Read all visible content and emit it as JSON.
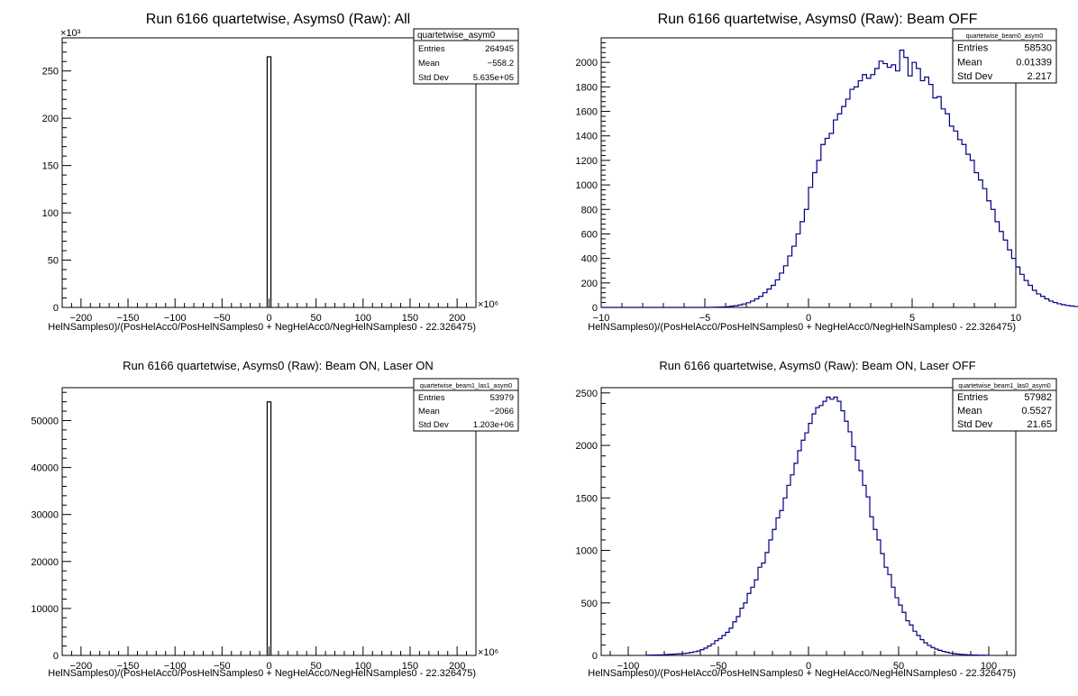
{
  "chart_data": [
    {
      "type": "bar",
      "title": "Run 6166 quartetwise, Asyms0 (Raw): All",
      "xlabel": "HelNSamples0)/(PosHelAcc0/PosHelNSamples0 + NegHelAcc0/NegHelNSamples0 - 22.326475)",
      "ylabel": "",
      "x_multiplier": "×10⁶",
      "y_multiplier": "×10³",
      "xlim": [
        -220,
        220
      ],
      "ylim": [
        0,
        285
      ],
      "xticks": [
        -200,
        -150,
        -100,
        -50,
        0,
        50,
        100,
        150,
        200
      ],
      "yticks": [
        0,
        50,
        100,
        150,
        200,
        250
      ],
      "bins": [
        [
          -2,
          2,
          265
        ]
      ],
      "color": "#000000",
      "stats": {
        "name": "quartetwise_asym0",
        "rows": [
          [
            "Entries",
            "264945"
          ],
          [
            "Mean",
            "−558.2"
          ],
          [
            "Std Dev",
            "5.635e+05"
          ]
        ]
      }
    },
    {
      "type": "bar",
      "title": "Run 6166 quartetwise, Asyms0 (Raw): Beam OFF",
      "xlabel": "HelNSamples0)/(PosHelAcc0/PosHelNSamples0 + NegHelAcc0/NegHelNSamples0 - 22.326475)",
      "ylabel": "",
      "xlim": [
        -10,
        10
      ],
      "ylim": [
        0,
        2200
      ],
      "xticks": [
        -10,
        -5,
        0,
        5,
        10
      ],
      "yticks": [
        0,
        200,
        400,
        600,
        800,
        1000,
        1200,
        1400,
        1600,
        1800,
        2000
      ],
      "bin_start": -10,
      "bin_width": 0.2,
      "values": [
        0,
        0,
        0,
        0,
        0,
        0,
        0,
        0,
        0,
        0,
        0,
        0,
        0,
        0,
        0,
        0,
        0,
        0,
        0,
        0,
        0,
        0,
        0,
        0,
        0,
        0,
        1,
        2,
        3,
        4,
        6,
        10,
        14,
        20,
        28,
        38,
        52,
        70,
        90,
        120,
        150,
        180,
        225,
        280,
        340,
        420,
        500,
        600,
        700,
        800,
        980,
        1100,
        1200,
        1330,
        1380,
        1420,
        1530,
        1580,
        1640,
        1700,
        1780,
        1800,
        1850,
        1900,
        1870,
        1900,
        1950,
        2010,
        1990,
        1960,
        1980,
        1930,
        2100,
        2040,
        1890,
        2000,
        1950,
        1850,
        1880,
        1820,
        1710,
        1720,
        1620,
        1580,
        1480,
        1440,
        1370,
        1330,
        1250,
        1200,
        1100,
        1040,
        970,
        870,
        800,
        700,
        620,
        550,
        470,
        400,
        330,
        270,
        220,
        180,
        140,
        110,
        90,
        70,
        52,
        40,
        30,
        22,
        16,
        12,
        8,
        6,
        4,
        3,
        2,
        1,
        0,
        0,
        0,
        0
      ],
      "color": "#000080",
      "stats": {
        "name": "quartetwise_beam0_asym0",
        "rows": [
          [
            "Entries",
            "58530"
          ],
          [
            "Mean",
            "0.01339"
          ],
          [
            "Std Dev",
            "2.217"
          ]
        ]
      }
    },
    {
      "type": "bar",
      "title": "Run 6166 quartetwise, Asyms0 (Raw): Beam ON, Laser ON",
      "xlabel": "HelNSamples0)/(PosHelAcc0/PosHelNSamples0 + NegHelAcc0/NegHelNSamples0 - 22.326475)",
      "ylabel": "",
      "x_multiplier": "×10⁶",
      "xlim": [
        -220,
        220
      ],
      "ylim": [
        0,
        57000
      ],
      "xticks": [
        -200,
        -150,
        -100,
        -50,
        0,
        50,
        100,
        150,
        200
      ],
      "yticks": [
        0,
        10000,
        20000,
        30000,
        40000,
        50000
      ],
      "bins": [
        [
          -2,
          2,
          53979
        ]
      ],
      "color": "#000000",
      "stats": {
        "name": "quartetwise_beam1_las1_asym0",
        "rows": [
          [
            "Entries",
            "53979"
          ],
          [
            "Mean",
            "−2066"
          ],
          [
            "Std Dev",
            "1.203e+06"
          ]
        ]
      }
    },
    {
      "type": "bar",
      "title": "Run 6166 quartetwise, Asyms0 (Raw): Beam ON, Laser OFF",
      "xlabel": "HelNSamples0)/(PosHelAcc0/PosHelNSamples0 + NegHelAcc0/NegHelNSamples0 - 22.326475)",
      "ylabel": "",
      "xlim": [
        -115,
        115
      ],
      "ylim": [
        0,
        2550
      ],
      "xticks": [
        -100,
        -50,
        0,
        50,
        100
      ],
      "yticks": [
        0,
        500,
        1000,
        1500,
        2000,
        2500
      ],
      "bin_start": -90,
      "bin_width": 2,
      "values": [
        2,
        3,
        4,
        5,
        6,
        8,
        10,
        12,
        14,
        16,
        18,
        22,
        28,
        35,
        42,
        55,
        70,
        90,
        110,
        140,
        160,
        190,
        220,
        260,
        320,
        370,
        450,
        500,
        590,
        650,
        720,
        840,
        880,
        980,
        1100,
        1200,
        1310,
        1380,
        1500,
        1620,
        1720,
        1830,
        1950,
        2050,
        2120,
        2210,
        2300,
        2360,
        2380,
        2420,
        2460,
        2440,
        2460,
        2420,
        2330,
        2230,
        2130,
        1990,
        1860,
        1760,
        1620,
        1510,
        1320,
        1200,
        1100,
        970,
        840,
        770,
        650,
        550,
        480,
        410,
        330,
        290,
        230,
        190,
        150,
        120,
        95,
        75,
        60,
        48,
        38,
        30,
        22,
        17,
        13,
        10,
        8,
        6,
        4,
        3,
        2,
        2,
        1
      ],
      "color": "#000080",
      "stats": {
        "name": "quartetwise_beam1_las0_asym0",
        "rows": [
          [
            "Entries",
            "57982"
          ],
          [
            "Mean",
            "0.5527"
          ],
          [
            "Std Dev",
            "21.65"
          ]
        ]
      }
    }
  ]
}
